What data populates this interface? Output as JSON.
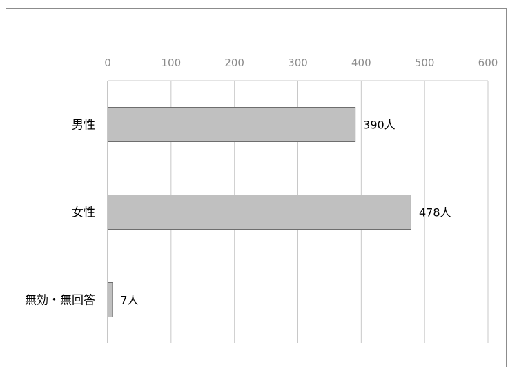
{
  "chart_data": {
    "type": "bar",
    "orientation": "horizontal",
    "categories": [
      "男性",
      "女性",
      "無効・無回答"
    ],
    "values": [
      390,
      478,
      7
    ],
    "data_labels": [
      "390人",
      "478人",
      "7人"
    ],
    "xlim": [
      0,
      600
    ],
    "x_ticks": [
      "0",
      "100",
      "200",
      "300",
      "400",
      "500",
      "600"
    ],
    "x_axis_position": "top",
    "grid": true,
    "legend": false,
    "colors": {
      "bar_fill": "#c0c0c0",
      "bar_stroke": "#6e6e6e",
      "grid": "#c8c8c8",
      "tick_text": "#8c8c8c"
    }
  }
}
